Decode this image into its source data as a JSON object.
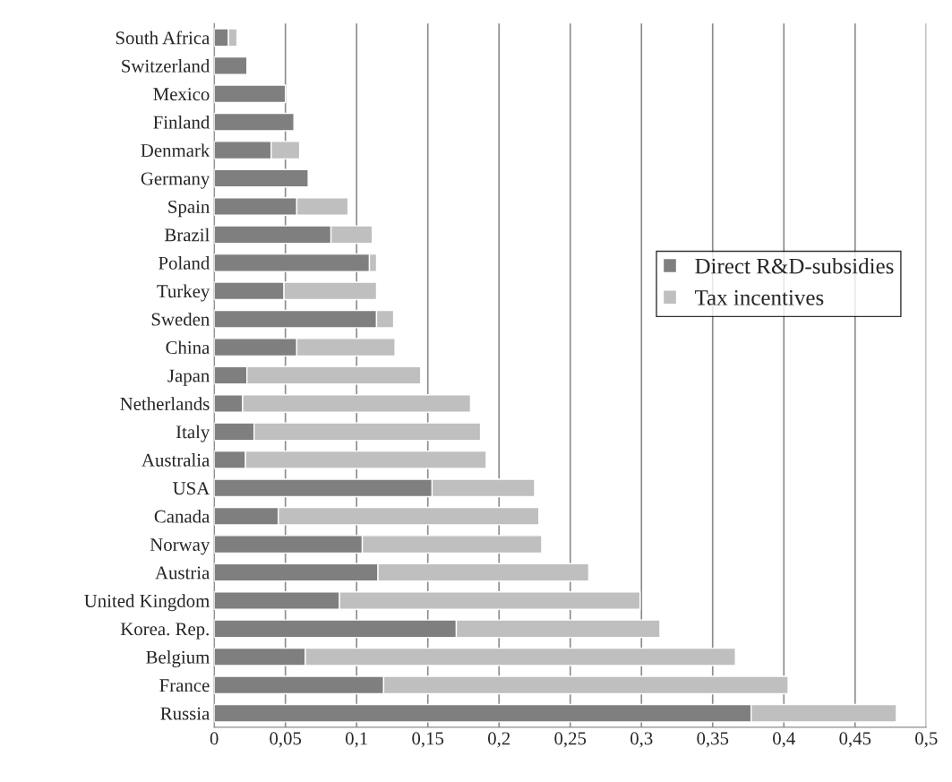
{
  "chart_data": {
    "type": "bar",
    "orientation": "horizontal",
    "stacked": true,
    "categories": [
      "South Africa",
      "Switzerland",
      "Mexico",
      "Finland",
      "Denmark",
      "Germany",
      "Spain",
      "Brazil",
      "Poland",
      "Turkey",
      "Sweden",
      "China",
      "Japan",
      "Netherlands",
      "Italy",
      "Australia",
      "USA",
      "Canada",
      "Norway",
      "Austria",
      "United Kingdom",
      "Korea. Rep.",
      "Belgium",
      "France",
      "Russia"
    ],
    "series": [
      {
        "name": "Direct R&D-subsidies",
        "color": "#7f7f7f",
        "values": [
          0.01,
          0.023,
          0.05,
          0.056,
          0.04,
          0.066,
          0.058,
          0.082,
          0.109,
          0.049,
          0.114,
          0.058,
          0.023,
          0.02,
          0.028,
          0.022,
          0.153,
          0.045,
          0.104,
          0.115,
          0.088,
          0.17,
          0.064,
          0.119,
          0.377
        ]
      },
      {
        "name": "Tax incentives",
        "color": "#bfbfbf",
        "values": [
          0.006,
          null,
          null,
          null,
          0.02,
          null,
          0.036,
          0.029,
          0.005,
          0.065,
          0.012,
          0.069,
          0.122,
          0.16,
          0.159,
          0.169,
          0.072,
          0.183,
          0.126,
          0.148,
          0.211,
          0.143,
          0.302,
          0.284,
          0.102
        ]
      }
    ],
    "xlim": [
      0,
      0.5
    ],
    "xticks": [
      0,
      {
        "value": 0.05,
        "label": "0,05"
      },
      {
        "value": 0.1,
        "label": "0,1"
      },
      {
        "value": 0.15,
        "label": "0,15"
      },
      {
        "value": 0.2,
        "label": "0,2"
      },
      {
        "value": 0.25,
        "label": "0,25"
      },
      {
        "value": 0.3,
        "label": "0,3"
      },
      {
        "value": 0.35,
        "label": "0,35"
      },
      {
        "value": 0.4,
        "label": "0,4"
      },
      {
        "value": 0.45,
        "label": "0,45"
      },
      {
        "value": 0.5,
        "label": "0,5"
      }
    ],
    "grid": "x",
    "legend": "right"
  }
}
